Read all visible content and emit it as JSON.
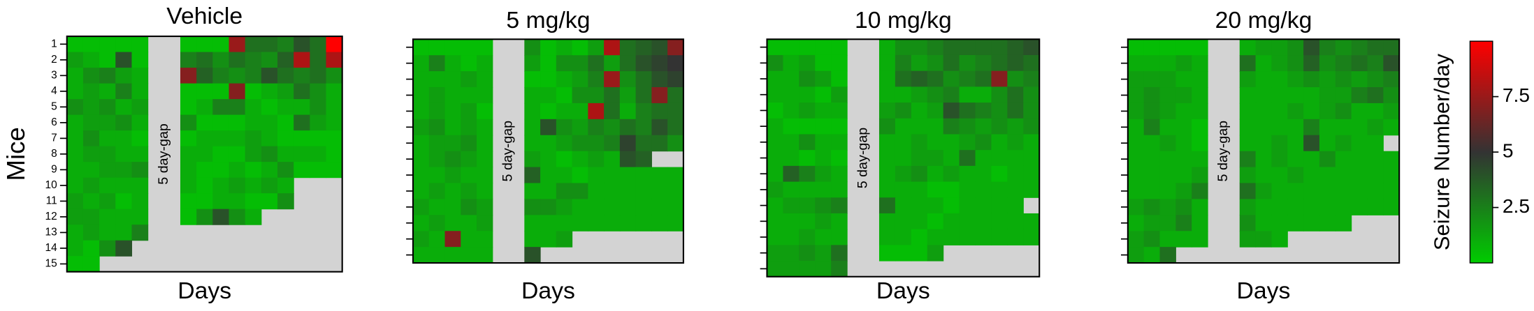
{
  "chart_data": [
    {
      "type": "heatmap",
      "title": "Vehicle",
      "x_label": "Days",
      "y_label": "Mice",
      "y_categories": [
        "1",
        "2",
        "3",
        "4",
        "5",
        "6",
        "7",
        "8",
        "9",
        "10",
        "11",
        "12",
        "13",
        "14",
        "15"
      ],
      "annotation": "5 day-gap",
      "values": [
        [
          0.5,
          0.5,
          0.5,
          0.5,
          0.5,
          null,
          null,
          0.5,
          0.5,
          0.5,
          7.5,
          3,
          3,
          2.5,
          4,
          3,
          10
        ],
        [
          1.5,
          1,
          0.5,
          4,
          0.5,
          null,
          null,
          2.5,
          3,
          2,
          3,
          2.5,
          2,
          3.5,
          8,
          3,
          8
        ],
        [
          1,
          2,
          2.5,
          1.5,
          1,
          null,
          null,
          7,
          3.5,
          2.5,
          2,
          2.5,
          4,
          3,
          2.5,
          3,
          2
        ],
        [
          1,
          1.5,
          1,
          2.5,
          1,
          null,
          null,
          0.5,
          0.5,
          0.5,
          7,
          0.5,
          1,
          1.5,
          3,
          2,
          1
        ],
        [
          2,
          1.5,
          2,
          1,
          1.5,
          null,
          null,
          0.5,
          1,
          2.5,
          2.5,
          1,
          0.5,
          1,
          1,
          2,
          1
        ],
        [
          1,
          1.5,
          1.5,
          2,
          1,
          null,
          null,
          2,
          0.5,
          0.5,
          0.5,
          1,
          1,
          0.5,
          3,
          1.5,
          1
        ],
        [
          1,
          2,
          1,
          1,
          0.5,
          null,
          null,
          0.5,
          1,
          1,
          1,
          1.5,
          1,
          0.5,
          0.5,
          0.5,
          0.5
        ],
        [
          1,
          1.5,
          1.5,
          1,
          1,
          null,
          null,
          1,
          1,
          0.5,
          0.5,
          1.5,
          2,
          1,
          1,
          1,
          0.5
        ],
        [
          1,
          1,
          1.5,
          1.5,
          2,
          null,
          null,
          1,
          0.5,
          0.5,
          1,
          0.5,
          1,
          2,
          0.5,
          0.5,
          0.5
        ],
        [
          1,
          1.5,
          1,
          1,
          1,
          null,
          null,
          1,
          0.5,
          1,
          1.5,
          1,
          1.5,
          1,
          null,
          null,
          null
        ],
        [
          1.5,
          1,
          1.5,
          0.5,
          1,
          null,
          null,
          0.5,
          0.5,
          1,
          1,
          0.5,
          0.5,
          2,
          null,
          null,
          null
        ],
        [
          1.5,
          1.5,
          1,
          1,
          1,
          null,
          null,
          0.5,
          2,
          4,
          2,
          1,
          null,
          null,
          null,
          null,
          null
        ],
        [
          1,
          1.5,
          1,
          1,
          2.5,
          null,
          null,
          null,
          null,
          null,
          null,
          null,
          null,
          null,
          null,
          null,
          null
        ],
        [
          1,
          0.5,
          2,
          4,
          null,
          null,
          null,
          null,
          null,
          null,
          null,
          null,
          null,
          null,
          null,
          null,
          null
        ],
        [
          0.5,
          0.5,
          null,
          null,
          null,
          null,
          null,
          null,
          null,
          null,
          null,
          null,
          null,
          null,
          null,
          null,
          null
        ]
      ]
    },
    {
      "type": "heatmap",
      "title": "5 mg/kg",
      "x_label": "Days",
      "annotation": "5 day-gap",
      "values": [
        [
          0.5,
          0.5,
          0.5,
          0.5,
          0.5,
          null,
          null,
          2,
          0.5,
          1,
          0.5,
          1.5,
          8,
          3,
          3.5,
          4,
          7
        ],
        [
          1,
          2.5,
          1,
          0.5,
          1,
          null,
          null,
          1.5,
          0.5,
          2,
          2,
          3,
          1.5,
          3,
          4,
          4.5,
          5
        ],
        [
          1,
          1,
          1,
          1.5,
          1,
          null,
          null,
          0.5,
          0.5,
          1,
          1.5,
          2.5,
          7.5,
          2,
          3,
          4,
          4.5
        ],
        [
          1,
          1.5,
          1,
          1,
          1,
          null,
          null,
          1,
          1,
          0.5,
          2,
          2,
          3,
          1.5,
          3,
          7,
          3
        ],
        [
          1,
          1.5,
          1,
          1.5,
          0.5,
          null,
          null,
          1,
          0.5,
          1,
          1,
          8,
          3,
          1,
          2.5,
          3,
          3
        ],
        [
          1.5,
          2,
          1,
          1.5,
          1,
          null,
          null,
          1,
          4,
          2,
          1.5,
          2.5,
          2,
          3,
          2.5,
          4,
          3
        ],
        [
          1,
          1.5,
          1.5,
          2,
          1,
          null,
          null,
          1,
          1,
          1.5,
          2,
          2,
          2.5,
          4.5,
          3,
          3,
          2
        ],
        [
          1,
          1.5,
          2,
          1.5,
          1,
          null,
          null,
          1.5,
          1,
          0.5,
          1,
          1.5,
          1,
          4,
          3.5,
          null,
          null
        ],
        [
          1,
          1,
          1.5,
          1,
          1,
          null,
          null,
          3.5,
          1,
          1,
          0.5,
          1,
          1,
          1,
          1,
          1,
          1
        ],
        [
          1,
          1.5,
          1,
          1.5,
          1,
          null,
          null,
          1,
          1,
          2,
          2,
          1,
          1,
          1,
          1,
          1,
          1
        ],
        [
          1.5,
          1,
          1,
          2,
          1.5,
          null,
          null,
          2,
          2,
          1.5,
          1,
          1,
          1,
          1,
          1,
          1,
          1
        ],
        [
          1,
          1.5,
          1,
          1,
          1.5,
          null,
          null,
          1,
          1,
          1,
          1,
          1,
          1,
          1,
          1,
          1,
          1
        ],
        [
          1.5,
          1,
          7,
          1,
          1,
          null,
          null,
          1,
          1,
          1.5,
          null,
          null,
          null,
          null,
          null,
          null,
          null
        ],
        [
          1,
          1,
          1,
          1,
          1,
          null,
          null,
          4,
          null,
          null,
          null,
          null,
          null,
          null,
          null,
          null,
          null
        ]
      ]
    },
    {
      "type": "heatmap",
      "title": "10 mg/kg",
      "x_label": "Days",
      "annotation": "5 day-gap",
      "values": [
        [
          0.5,
          0.5,
          0.5,
          0.5,
          0.5,
          null,
          null,
          1,
          2,
          2,
          2.5,
          3,
          3,
          3,
          3,
          3.5,
          4
        ],
        [
          2,
          1,
          1.5,
          0.5,
          0.5,
          null,
          null,
          1,
          2.5,
          1.5,
          2,
          3,
          2,
          2.5,
          3,
          3.5,
          3
        ],
        [
          1,
          1,
          2,
          1.5,
          0.5,
          null,
          null,
          1,
          3,
          3.5,
          3,
          2,
          2.5,
          3,
          7,
          2,
          2.5
        ],
        [
          1,
          1,
          1,
          0.5,
          1.5,
          null,
          null,
          1,
          1,
          1.5,
          2,
          2.5,
          1,
          1,
          2,
          3,
          2
        ],
        [
          0.5,
          1,
          1.5,
          1,
          1,
          null,
          null,
          1.5,
          2,
          1,
          1.5,
          4,
          3,
          2.5,
          2,
          3,
          2
        ],
        [
          1,
          0.5,
          0.5,
          0.5,
          0.5,
          null,
          null,
          2,
          1,
          1,
          1,
          2.5,
          2,
          1.5,
          2,
          1.5,
          2
        ],
        [
          1,
          1,
          2,
          1,
          1,
          null,
          null,
          1,
          1,
          1.5,
          1,
          1,
          1.5,
          2,
          1,
          1.5,
          1
        ],
        [
          1,
          1,
          0.5,
          1,
          0.5,
          null,
          null,
          1,
          1,
          1.5,
          1.5,
          1,
          3,
          1,
          1,
          1,
          1
        ],
        [
          1,
          3.5,
          2.5,
          1.5,
          1,
          null,
          null,
          1,
          1.5,
          2,
          1,
          1.5,
          1,
          1,
          0.5,
          1,
          1
        ],
        [
          1.5,
          1,
          1,
          1,
          1,
          null,
          null,
          1,
          1,
          1,
          0.5,
          0.5,
          1,
          1,
          1,
          1,
          1
        ],
        [
          1,
          1.5,
          1.5,
          2,
          2.5,
          null,
          null,
          3,
          1,
          1,
          1,
          0.5,
          1,
          1,
          1,
          1,
          null
        ],
        [
          1,
          1,
          1,
          1.5,
          1,
          null,
          null,
          1,
          1,
          1,
          0.5,
          1,
          1,
          1,
          1,
          1,
          1
        ],
        [
          1,
          1,
          1.5,
          1,
          1,
          null,
          null,
          1,
          1,
          0.5,
          1,
          1,
          1,
          1,
          1,
          1,
          1
        ],
        [
          1.5,
          1.5,
          2,
          1.5,
          3,
          null,
          null,
          0.5,
          0.5,
          0.5,
          1.5,
          null,
          null,
          null,
          null,
          null,
          null
        ],
        [
          1.5,
          1.5,
          1.5,
          1.5,
          2.5,
          null,
          null,
          null,
          null,
          null,
          null,
          null,
          null,
          null,
          null,
          null,
          null
        ]
      ]
    },
    {
      "type": "heatmap",
      "title": "20 mg/kg",
      "x_label": "Days",
      "annotation": "5 day-gap",
      "values": [
        [
          0.5,
          0.5,
          0.5,
          0.5,
          0.5,
          null,
          null,
          1,
          1.5,
          1.5,
          2,
          4,
          2.5,
          2,
          2.5,
          3,
          3
        ],
        [
          1,
          1,
          1,
          1.5,
          1,
          null,
          null,
          3,
          1,
          1.5,
          2,
          3.5,
          2,
          2.5,
          3,
          2.5,
          4
        ],
        [
          1.5,
          1.5,
          1.5,
          1,
          1,
          null,
          null,
          1.5,
          1,
          1,
          1.5,
          2,
          1.5,
          2,
          1.5,
          2,
          2.5
        ],
        [
          1.5,
          2,
          1.5,
          1.5,
          1,
          null,
          null,
          1,
          1,
          1,
          1,
          1,
          1.5,
          1.5,
          2.5,
          3,
          2
        ],
        [
          1.5,
          2,
          1.5,
          1,
          1,
          null,
          null,
          1,
          1,
          1,
          1.5,
          1,
          1.5,
          2,
          1,
          1,
          1.5
        ],
        [
          1,
          2.5,
          1,
          1,
          0.5,
          null,
          null,
          1,
          1,
          1,
          1,
          2.5,
          1,
          1,
          1,
          1.5,
          1
        ],
        [
          1,
          1,
          1.5,
          1,
          0.5,
          null,
          null,
          1,
          1,
          1.5,
          1,
          4,
          1,
          1.5,
          1,
          1,
          null
        ],
        [
          1,
          1,
          1,
          1,
          1,
          null,
          null,
          2.5,
          1,
          1.5,
          1,
          1,
          2,
          1,
          1,
          1,
          1
        ],
        [
          1,
          1,
          1,
          1,
          1.5,
          null,
          null,
          1.5,
          1,
          1,
          1.5,
          1,
          1,
          1,
          1,
          1,
          1
        ],
        [
          1,
          1,
          1,
          1.5,
          2.5,
          null,
          null,
          3,
          1.5,
          1,
          1,
          1,
          1,
          1,
          1,
          1,
          1
        ],
        [
          1.5,
          2,
          1.5,
          2,
          1,
          null,
          null,
          1.5,
          1,
          1,
          1,
          1,
          1,
          1,
          1,
          1,
          1
        ],
        [
          1,
          1.5,
          1.5,
          2.5,
          1,
          null,
          null,
          2,
          1,
          1,
          1,
          1,
          1,
          1,
          null,
          null,
          null
        ],
        [
          1.5,
          2,
          1,
          1,
          1,
          null,
          null,
          1.5,
          1.5,
          1,
          null,
          null,
          null,
          null,
          null,
          null,
          null
        ],
        [
          1.5,
          1,
          3,
          null,
          null,
          null,
          null,
          null,
          null,
          null,
          null,
          null,
          null,
          null,
          null,
          null,
          null
        ]
      ]
    }
  ],
  "colorbar": {
    "label": "Seizure Number/day",
    "zlim": [
      0,
      10
    ],
    "ticks": [
      2.5,
      5,
      7.5
    ],
    "colors": [
      "#00cc00",
      "#333333",
      "#ff0000"
    ],
    "missing_color": "#d3d3d3"
  }
}
